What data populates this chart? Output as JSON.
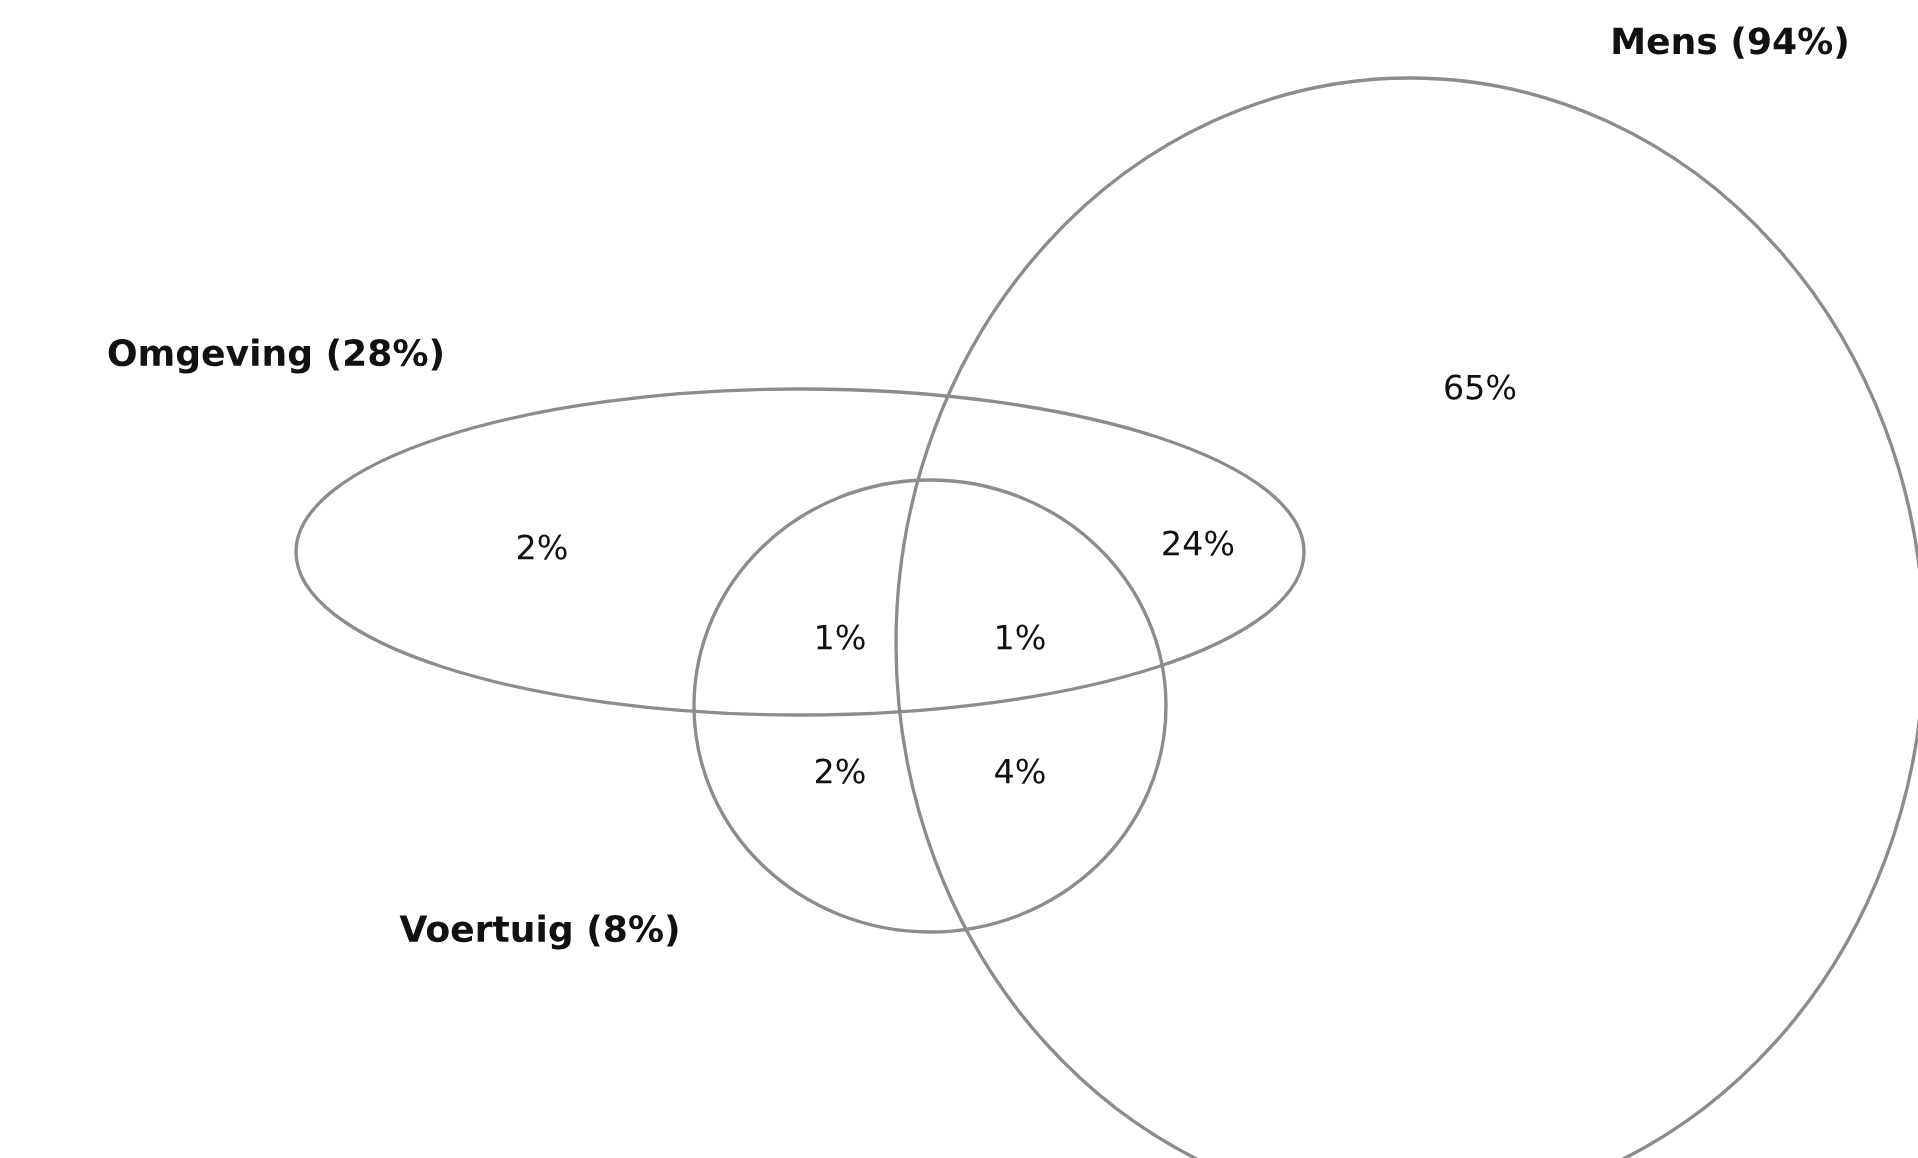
{
  "chart_data": {
    "type": "other",
    "categories": [
      null,
      null,
      null,
      null,
      null,
      null,
      null
    ],
    "values": [
      65,
      2,
      24,
      1,
      1,
      2,
      4
    ],
    "value_labels": [
      "65%",
      "2%",
      "24%",
      "1%",
      "1%",
      "2%",
      "4%"
    ],
    "annotations": [
      "Mens (94%)",
      "Omgeving (28%)",
      "Voertuig (8%)"
    ]
  }
}
